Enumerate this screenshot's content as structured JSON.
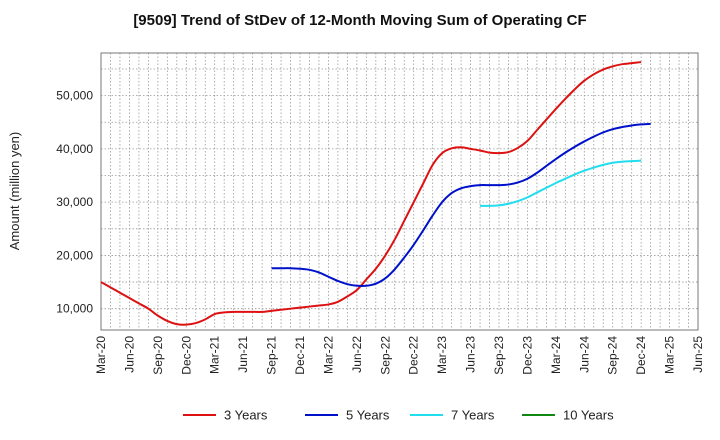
{
  "chart_data": {
    "type": "line",
    "title": "[9509]  Trend of StDev of 12-Month Moving Sum of Operating CF",
    "xlabel": "",
    "ylabel": "Amount (million yen)",
    "ylim": [
      6000,
      58000
    ],
    "yticks": [
      10000,
      20000,
      30000,
      40000,
      50000
    ],
    "ytick_labels": [
      "10,000",
      "20,000",
      "30,000",
      "40,000",
      "50,000"
    ],
    "xticks": [
      "Mar-20",
      "Jun-20",
      "Sep-20",
      "Dec-20",
      "Mar-21",
      "Jun-21",
      "Sep-21",
      "Dec-21",
      "Mar-22",
      "Jun-22",
      "Sep-22",
      "Dec-22",
      "Mar-23",
      "Jun-23",
      "Sep-23",
      "Dec-23",
      "Mar-24",
      "Jun-24",
      "Sep-24",
      "Dec-24",
      "Mar-25",
      "Jun-25"
    ],
    "grid": true,
    "legend_position": "bottom",
    "series": [
      {
        "name": "3 Years",
        "color": "#dd1111",
        "points": [
          [
            "Mar-20",
            15000
          ],
          [
            "Apr-20",
            14000
          ],
          [
            "May-20",
            13000
          ],
          [
            "Jun-20",
            12000
          ],
          [
            "Jul-20",
            11000
          ],
          [
            "Aug-20",
            10000
          ],
          [
            "Sep-20",
            8700
          ],
          [
            "Oct-20",
            7700
          ],
          [
            "Nov-20",
            7100
          ],
          [
            "Dec-20",
            7000
          ],
          [
            "Jan-21",
            7300
          ],
          [
            "Feb-21",
            8000
          ],
          [
            "Mar-21",
            9000
          ],
          [
            "Apr-21",
            9300
          ],
          [
            "May-21",
            9400
          ],
          [
            "Jun-21",
            9400
          ],
          [
            "Jul-21",
            9400
          ],
          [
            "Aug-21",
            9400
          ],
          [
            "Sep-21",
            9600
          ],
          [
            "Oct-21",
            9800
          ],
          [
            "Nov-21",
            10000
          ],
          [
            "Dec-21",
            10200
          ],
          [
            "Jan-22",
            10400
          ],
          [
            "Feb-22",
            10600
          ],
          [
            "Mar-22",
            10800
          ],
          [
            "Apr-22",
            11300
          ],
          [
            "May-22",
            12300
          ],
          [
            "Jun-22",
            13500
          ],
          [
            "Jul-22",
            15500
          ],
          [
            "Aug-22",
            17500
          ],
          [
            "Sep-22",
            20000
          ],
          [
            "Oct-22",
            23000
          ],
          [
            "Nov-22",
            26500
          ],
          [
            "Dec-22",
            30000
          ],
          [
            "Jan-23",
            33500
          ],
          [
            "Feb-23",
            37000
          ],
          [
            "Mar-23",
            39200
          ],
          [
            "Apr-23",
            40100
          ],
          [
            "May-23",
            40300
          ],
          [
            "Jun-23",
            40000
          ],
          [
            "Jul-23",
            39700
          ],
          [
            "Aug-23",
            39300
          ],
          [
            "Sep-23",
            39200
          ],
          [
            "Oct-23",
            39400
          ],
          [
            "Nov-23",
            40200
          ],
          [
            "Dec-23",
            41500
          ],
          [
            "Jan-24",
            43500
          ],
          [
            "Feb-24",
            45500
          ],
          [
            "Mar-24",
            47500
          ],
          [
            "Apr-24",
            49400
          ],
          [
            "May-24",
            51200
          ],
          [
            "Jun-24",
            52800
          ],
          [
            "Jul-24",
            54000
          ],
          [
            "Aug-24",
            54900
          ],
          [
            "Sep-24",
            55500
          ],
          [
            "Oct-24",
            55900
          ],
          [
            "Nov-24",
            56100
          ],
          [
            "Dec-24",
            56300
          ]
        ]
      },
      {
        "name": "5 Years",
        "color": "#0011cc",
        "points": [
          [
            "Sep-21",
            17600
          ],
          [
            "Oct-21",
            17600
          ],
          [
            "Nov-21",
            17600
          ],
          [
            "Dec-21",
            17500
          ],
          [
            "Jan-22",
            17300
          ],
          [
            "Feb-22",
            16800
          ],
          [
            "Mar-22",
            16000
          ],
          [
            "Apr-22",
            15200
          ],
          [
            "May-22",
            14600
          ],
          [
            "Jun-22",
            14300
          ],
          [
            "Jul-22",
            14300
          ],
          [
            "Aug-22",
            14700
          ],
          [
            "Sep-22",
            15700
          ],
          [
            "Oct-22",
            17400
          ],
          [
            "Nov-22",
            19600
          ],
          [
            "Dec-22",
            22000
          ],
          [
            "Jan-23",
            24700
          ],
          [
            "Feb-23",
            27500
          ],
          [
            "Mar-23",
            30000
          ],
          [
            "Apr-23",
            31700
          ],
          [
            "May-23",
            32600
          ],
          [
            "Jun-23",
            33000
          ],
          [
            "Jul-23",
            33200
          ],
          [
            "Aug-23",
            33200
          ],
          [
            "Sep-23",
            33200
          ],
          [
            "Oct-23",
            33300
          ],
          [
            "Nov-23",
            33700
          ],
          [
            "Dec-23",
            34400
          ],
          [
            "Jan-24",
            35500
          ],
          [
            "Feb-24",
            36800
          ],
          [
            "Mar-24",
            38100
          ],
          [
            "Apr-24",
            39300
          ],
          [
            "May-24",
            40400
          ],
          [
            "Jun-24",
            41400
          ],
          [
            "Jul-24",
            42300
          ],
          [
            "Aug-24",
            43100
          ],
          [
            "Sep-24",
            43700
          ],
          [
            "Oct-24",
            44100
          ],
          [
            "Nov-24",
            44400
          ],
          [
            "Dec-24",
            44600
          ],
          [
            "Jan-25",
            44700
          ]
        ]
      },
      {
        "name": "7 Years",
        "color": "#22ddee",
        "points": [
          [
            "Jul-23",
            29300
          ],
          [
            "Aug-23",
            29300
          ],
          [
            "Sep-23",
            29400
          ],
          [
            "Oct-23",
            29700
          ],
          [
            "Nov-23",
            30200
          ],
          [
            "Dec-23",
            30900
          ],
          [
            "Jan-24",
            31800
          ],
          [
            "Feb-24",
            32700
          ],
          [
            "Mar-24",
            33600
          ],
          [
            "Apr-24",
            34400
          ],
          [
            "May-24",
            35200
          ],
          [
            "Jun-24",
            35900
          ],
          [
            "Jul-24",
            36500
          ],
          [
            "Aug-24",
            37000
          ],
          [
            "Sep-24",
            37400
          ],
          [
            "Oct-24",
            37600
          ],
          [
            "Nov-24",
            37700
          ],
          [
            "Dec-24",
            37800
          ]
        ]
      },
      {
        "name": "10 Years",
        "color": "#118811",
        "points": []
      }
    ]
  }
}
